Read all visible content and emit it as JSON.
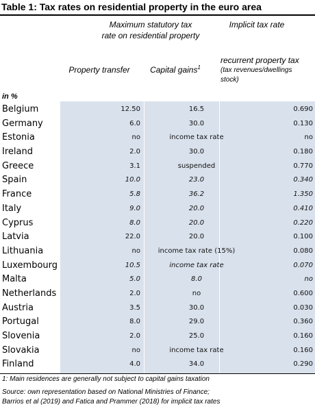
{
  "title": "Table 1: Tax rates on residential property in the euro area",
  "headers": {
    "group_statutory_line1": "Maximum statutory tax",
    "group_statutory_line2": "rate on residential property",
    "group_implicit": "Implicit tax rate",
    "col_property_transfer": "Property transfer",
    "col_capital_gains": "Capital gains",
    "col_capital_gains_note": "1",
    "col_recurrent_line1": "recurrent property tax",
    "col_recurrent_line2": "(tax revenues/dwellings",
    "col_recurrent_line3": "stock)",
    "unit": "in %"
  },
  "rows": [
    {
      "country": "Belgium",
      "transfer": "12.50",
      "gains": "16.5",
      "implicit": "0.690",
      "italic": false
    },
    {
      "country": "Germany",
      "transfer": "6.0",
      "gains": "30.0",
      "implicit": "0.130",
      "italic": false
    },
    {
      "country": "Estonia",
      "transfer": "no",
      "gains": "income tax rate",
      "implicit": "no",
      "italic": false
    },
    {
      "country": "Ireland",
      "transfer": "2.0",
      "gains": "30.0",
      "implicit": "0.180",
      "italic": false
    },
    {
      "country": "Greece",
      "transfer": "3.1",
      "gains": "suspended",
      "implicit": "0.770",
      "italic": false
    },
    {
      "country": "Spain",
      "transfer": "10.0",
      "gains": "23.0",
      "implicit": "0.340",
      "italic": true
    },
    {
      "country": "France",
      "transfer": "5.8",
      "gains": "36.2",
      "implicit": "1.350",
      "italic": true
    },
    {
      "country": "Italy",
      "transfer": "9.0",
      "gains": "20.0",
      "implicit": "0.410",
      "italic": true
    },
    {
      "country": "Cyprus",
      "transfer": "8.0",
      "gains": "20.0",
      "implicit": "0.220",
      "italic": true
    },
    {
      "country": "Latvia",
      "transfer": "22.0",
      "gains": "20.0",
      "implicit": "0.100",
      "italic": false
    },
    {
      "country": "Lithuania",
      "transfer": "no",
      "gains": "income tax rate (15%)",
      "implicit": "0.080",
      "italic": false
    },
    {
      "country": "Luxembourg",
      "transfer": "10.5",
      "gains": "income tax rate",
      "implicit": "0.070",
      "italic": true
    },
    {
      "country": "Malta",
      "transfer": "5.0",
      "gains": "8.0",
      "implicit": "no",
      "italic": true
    },
    {
      "country": "Netherlands",
      "transfer": "2.0",
      "gains": "no",
      "implicit": "0.600",
      "italic": false
    },
    {
      "country": "Austria",
      "transfer": "3.5",
      "gains": "30.0",
      "implicit": "0.030",
      "italic": false
    },
    {
      "country": "Portugal",
      "transfer": "8.0",
      "gains": "29.0",
      "implicit": "0.360",
      "italic": false
    },
    {
      "country": "Slovenia",
      "transfer": "2.0",
      "gains": "25.0",
      "implicit": "0.160",
      "italic": false
    },
    {
      "country": "Slovakia",
      "transfer": "no",
      "gains": "income tax rate",
      "implicit": "0.160",
      "italic": false
    },
    {
      "country": "Finland",
      "transfer": "4.0",
      "gains": "34.0",
      "implicit": "0.290",
      "italic": false
    }
  ],
  "footnote": "1: Main residences are generally not subject to capital gains taxation",
  "source_line1": "Source: own representation based on National Ministries of Finance;",
  "source_line2": "Barrios et al (2019) and Fatica and Prammer (2018) for implicit tax rates"
}
